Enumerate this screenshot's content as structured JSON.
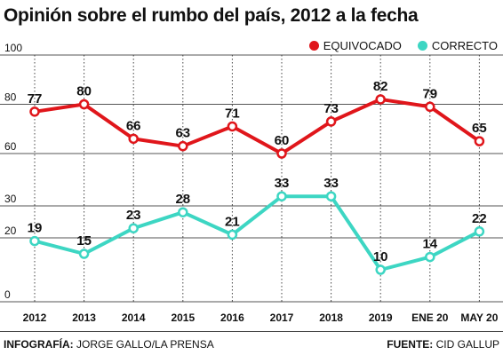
{
  "title": "Opinión sobre el rumbo del país, 2012 a la fecha",
  "legend": {
    "equivocado": "EQUIVOCADO",
    "correcto": "CORRECTO"
  },
  "colors": {
    "equivocado": "#e0161b",
    "correcto": "#3dd6c3"
  },
  "footer": {
    "left_label": "INFOGRAFÍA:",
    "left_value": "JORGE GALLO/LA PRENSA",
    "right_label": "FUENTE:",
    "right_value": "CID GALLUP"
  },
  "chart_data": {
    "type": "line",
    "title": "Opinión sobre el rumbo del país, 2012 a la fecha",
    "categories": [
      "2012",
      "2013",
      "2014",
      "2015",
      "2016",
      "2017",
      "2018",
      "2019",
      "ENE 20",
      "MAY 20"
    ],
    "bold_categories": [
      "ENE 20",
      "MAY 20"
    ],
    "y_ticks_upper": [
      100,
      80,
      60
    ],
    "y_ticks_lower": [
      30,
      20,
      0
    ],
    "axis_break": true,
    "grid": true,
    "legend_position": "top-right",
    "series": [
      {
        "name": "EQUIVOCADO",
        "values": [
          77,
          80,
          66,
          63,
          71,
          60,
          73,
          82,
          79,
          65
        ],
        "panel": "upper"
      },
      {
        "name": "CORRECTO",
        "values": [
          19,
          15,
          23,
          28,
          21,
          33,
          33,
          10,
          14,
          22
        ],
        "panel": "lower"
      }
    ]
  }
}
